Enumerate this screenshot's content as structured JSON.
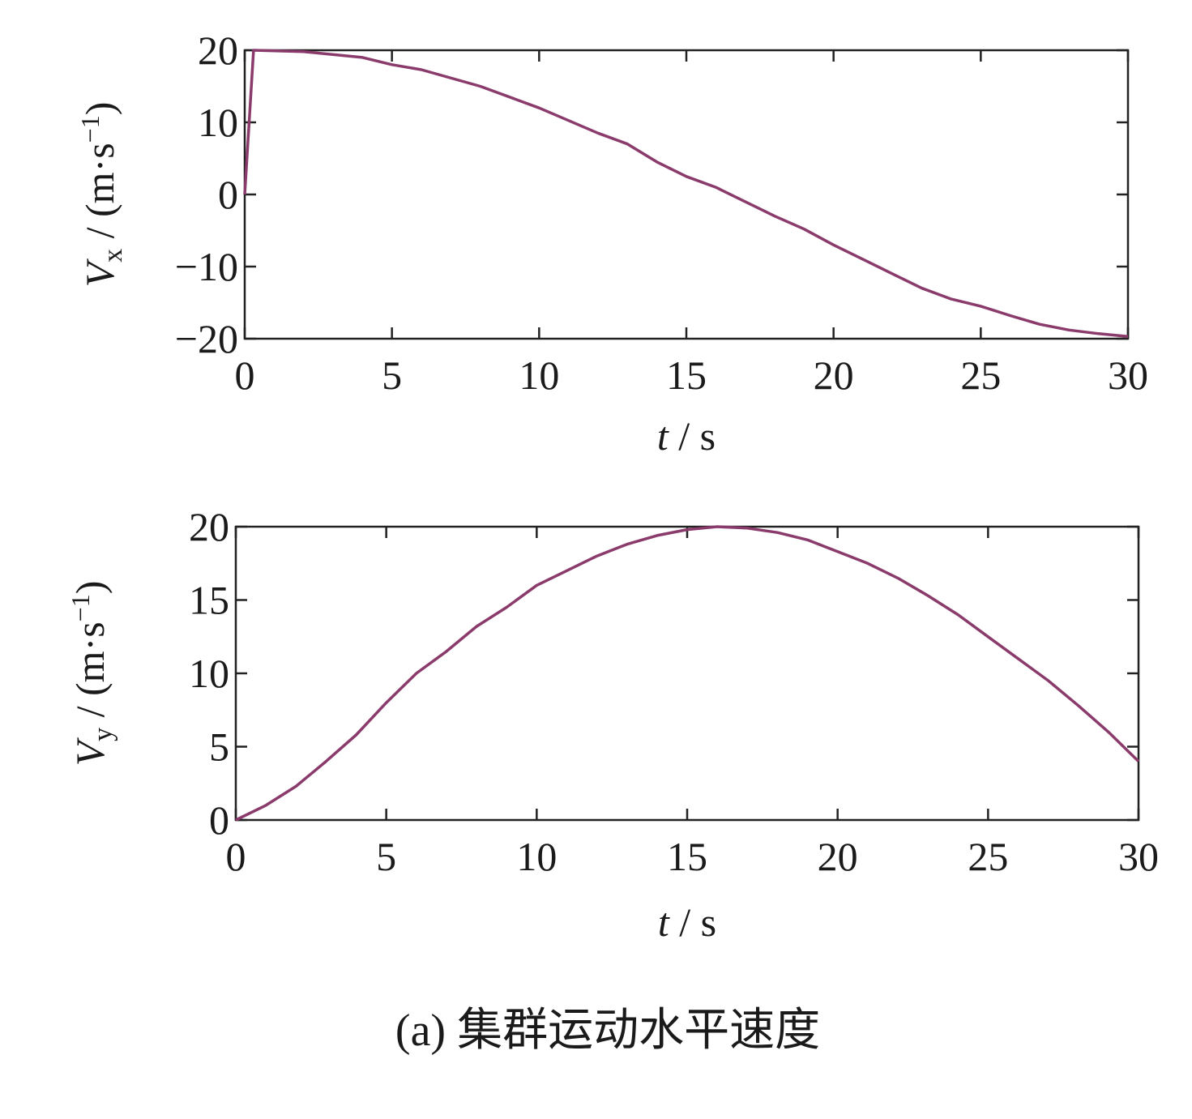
{
  "chart_data": [
    {
      "type": "line",
      "ylabel": {
        "main": "V",
        "sub": "x",
        "unit": " / (m·s",
        "sup": "−1",
        "end": ")"
      },
      "xlabel": {
        "main": "t",
        "unit": " / s"
      },
      "x": [
        0,
        0.3,
        2,
        4,
        5,
        6,
        8,
        10,
        12,
        13,
        14,
        15,
        16,
        17,
        18,
        19,
        20,
        21,
        22,
        23,
        24,
        25,
        26,
        27,
        28,
        29,
        30
      ],
      "values": [
        0,
        20,
        19.8,
        19,
        18,
        17.3,
        15,
        12,
        8.5,
        7,
        4.5,
        2.5,
        1,
        -1,
        -3,
        -4.8,
        -7,
        -9,
        -11,
        -13,
        -14.5,
        -15.5,
        -16.8,
        -18,
        -18.8,
        -19.3,
        -19.7
      ],
      "color": "#8a3b6b",
      "xlim": [
        0,
        30
      ],
      "xticks": [
        0,
        5,
        10,
        15,
        20,
        25,
        30
      ],
      "ylim": [
        -20,
        20
      ],
      "yticks": [
        {
          "value": -20,
          "label": "−20"
        },
        {
          "value": -10,
          "label": "−10"
        },
        0,
        10,
        20
      ]
    },
    {
      "type": "line",
      "ylabel": {
        "main": "V",
        "sub": "y",
        "unit": " / (m·s",
        "sup": "−1",
        "end": ")"
      },
      "xlabel": {
        "main": "t",
        "unit": " / s"
      },
      "x": [
        0,
        1,
        2,
        3,
        4,
        5,
        6,
        7,
        8,
        9,
        10,
        11,
        12,
        13,
        14,
        15,
        16,
        17,
        18,
        19,
        20,
        21,
        22,
        23,
        24,
        25,
        26,
        27,
        28,
        29,
        30
      ],
      "values": [
        0,
        1,
        2.3,
        4,
        5.8,
        8,
        10,
        11.5,
        13.2,
        14.5,
        16,
        17,
        18,
        18.8,
        19.4,
        19.8,
        20,
        19.9,
        19.6,
        19.1,
        18.3,
        17.5,
        16.5,
        15.3,
        14,
        12.5,
        11,
        9.5,
        7.8,
        6,
        4
      ],
      "color": "#8a3b6b",
      "xlim": [
        0,
        30
      ],
      "xticks": [
        0,
        5,
        10,
        15,
        20,
        25,
        30
      ],
      "ylim": [
        0,
        20
      ],
      "yticks": [
        0,
        5,
        10,
        15,
        20
      ]
    }
  ],
  "caption": "(a) 集群运动水平速度"
}
